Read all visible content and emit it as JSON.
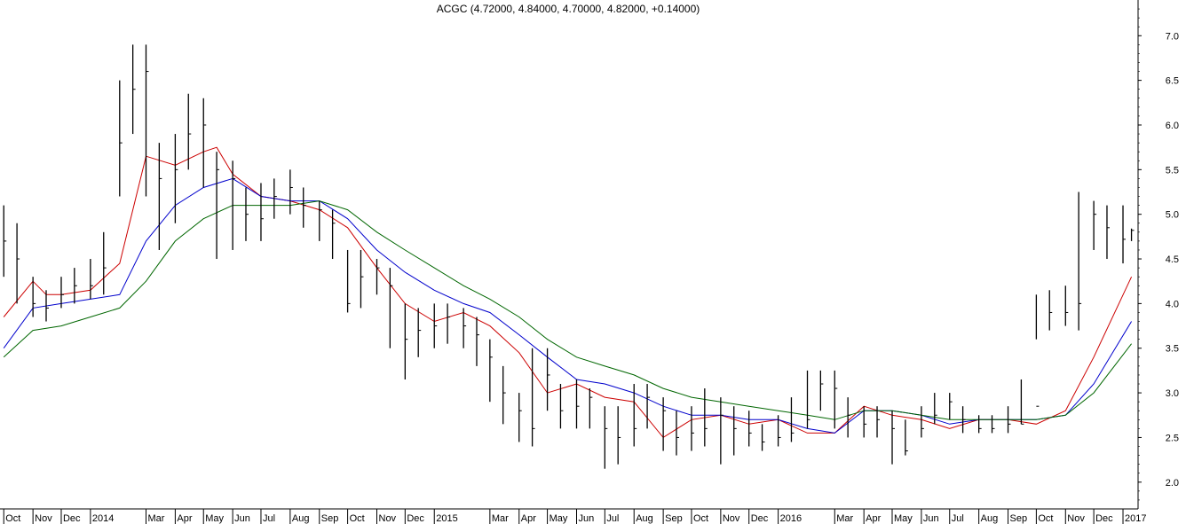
{
  "chart_data": {
    "type": "line",
    "title": "ACGC (4.72000, 4.84000, 4.70000, 4.82000, +0.14000)",
    "xlabel": "",
    "ylabel": "",
    "ylim": [
      1.7,
      7.4
    ],
    "y_ticks": [
      "2.0",
      "2.5",
      "3.0",
      "3.5",
      "4.0",
      "4.5",
      "5.0",
      "5.5",
      "6.0",
      "6.5",
      "7.0"
    ],
    "y_tick_values": [
      2.0,
      2.5,
      3.0,
      3.5,
      4.0,
      4.5,
      5.0,
      5.5,
      6.0,
      6.5,
      7.0
    ],
    "x_tick_labels": [
      "Oct",
      "Nov",
      "Dec",
      "2014",
      "Mar",
      "Apr",
      "May",
      "Jun",
      "Jul",
      "Aug",
      "Sep",
      "Oct",
      "Nov",
      "Dec",
      "2015",
      "Mar",
      "Apr",
      "May",
      "Jun",
      "Jul",
      "Aug",
      "Sep",
      "Oct",
      "Nov",
      "Dec",
      "2016",
      "Mar",
      "Apr",
      "May",
      "Jun",
      "Jul",
      "Aug",
      "Sep",
      "Oct",
      "Nov",
      "Dec",
      "2017"
    ],
    "x_tick_dates": [
      "2013-10",
      "2013-11",
      "2013-12",
      "2014-01",
      "2014-03",
      "2014-04",
      "2014-05",
      "2014-06",
      "2014-07",
      "2014-08",
      "2014-09",
      "2014-10",
      "2014-11",
      "2014-12",
      "2015-01",
      "2015-03",
      "2015-04",
      "2015-05",
      "2015-06",
      "2015-07",
      "2015-08",
      "2015-09",
      "2015-10",
      "2015-11",
      "2015-12",
      "2016-01",
      "2016-03",
      "2016-04",
      "2016-05",
      "2016-06",
      "2016-07",
      "2016-08",
      "2016-09",
      "2016-10",
      "2016-11",
      "2016-12",
      "2017-01"
    ],
    "grid": false,
    "price": {
      "style": "hlc-bars",
      "x": [
        "2013-10-01",
        "2013-10-15",
        "2013-11-01",
        "2013-11-15",
        "2013-12-01",
        "2013-12-15",
        "2014-01-01",
        "2014-01-15",
        "2014-02-01",
        "2014-02-15",
        "2014-03-01",
        "2014-03-15",
        "2014-04-01",
        "2014-04-15",
        "2014-05-01",
        "2014-05-15",
        "2014-06-01",
        "2014-06-15",
        "2014-07-01",
        "2014-07-15",
        "2014-08-01",
        "2014-08-15",
        "2014-09-01",
        "2014-09-15",
        "2014-10-01",
        "2014-10-15",
        "2014-11-01",
        "2014-11-15",
        "2014-12-01",
        "2014-12-15",
        "2015-01-01",
        "2015-01-15",
        "2015-02-01",
        "2015-02-15",
        "2015-03-01",
        "2015-03-15",
        "2015-04-01",
        "2015-04-15",
        "2015-05-01",
        "2015-05-15",
        "2015-06-01",
        "2015-06-15",
        "2015-07-01",
        "2015-07-15",
        "2015-08-01",
        "2015-08-15",
        "2015-09-01",
        "2015-09-15",
        "2015-10-01",
        "2015-10-15",
        "2015-11-01",
        "2015-11-15",
        "2015-12-01",
        "2015-12-15",
        "2016-01-01",
        "2016-01-15",
        "2016-02-01",
        "2016-02-15",
        "2016-03-01",
        "2016-03-15",
        "2016-04-01",
        "2016-04-15",
        "2016-05-01",
        "2016-05-15",
        "2016-06-01",
        "2016-06-15",
        "2016-07-01",
        "2016-07-15",
        "2016-08-01",
        "2016-08-15",
        "2016-09-01",
        "2016-09-15",
        "2016-10-01",
        "2016-10-15",
        "2016-11-01",
        "2016-11-15",
        "2016-12-01",
        "2016-12-15",
        "2017-01-01",
        "2017-01-10"
      ],
      "close": [
        4.7,
        4.5,
        4.0,
        3.95,
        4.1,
        4.2,
        4.2,
        4.4,
        5.8,
        6.4,
        6.6,
        5.4,
        5.5,
        5.9,
        6.0,
        5.5,
        5.4,
        5.0,
        4.95,
        5.2,
        5.3,
        5.1,
        5.05,
        4.9,
        4.0,
        4.3,
        4.4,
        4.2,
        3.6,
        3.7,
        3.75,
        3.85,
        3.75,
        3.65,
        3.4,
        3.0,
        2.8,
        2.6,
        3.2,
        2.8,
        2.85,
        2.95,
        2.6,
        2.5,
        2.6,
        2.95,
        2.8,
        2.5,
        2.55,
        2.6,
        2.75,
        2.6,
        2.55,
        2.45,
        2.5,
        2.55,
        2.7,
        3.1,
        3.05,
        2.75,
        2.65,
        2.7,
        2.6,
        2.35,
        2.6,
        2.75,
        2.9,
        2.7,
        2.6,
        2.6,
        2.65,
        2.65,
        2.85,
        3.9,
        3.9,
        4.0,
        5.0,
        4.85,
        4.72,
        4.82
      ],
      "high": [
        5.1,
        4.9,
        4.3,
        4.15,
        4.3,
        4.4,
        4.5,
        4.8,
        6.5,
        6.9,
        6.9,
        5.8,
        5.9,
        6.35,
        6.3,
        5.7,
        5.6,
        5.3,
        5.35,
        5.4,
        5.5,
        5.3,
        5.15,
        5.05,
        4.6,
        4.6,
        4.5,
        4.4,
        4.0,
        3.95,
        4.0,
        4.0,
        3.95,
        3.85,
        3.6,
        3.3,
        3.0,
        3.5,
        3.5,
        3.1,
        3.15,
        3.05,
        2.85,
        2.85,
        3.1,
        3.1,
        2.95,
        2.8,
        2.85,
        3.05,
        2.95,
        2.85,
        2.8,
        2.65,
        2.75,
        2.95,
        3.25,
        3.25,
        3.25,
        2.95,
        2.85,
        2.85,
        2.8,
        2.7,
        2.85,
        3.0,
        3.0,
        2.85,
        2.75,
        2.75,
        2.85,
        3.15,
        4.1,
        4.15,
        4.2,
        5.25,
        5.15,
        5.1,
        5.1,
        4.84
      ],
      "low": [
        4.3,
        4.0,
        3.85,
        3.8,
        3.95,
        4.0,
        4.05,
        4.1,
        5.2,
        5.9,
        5.2,
        4.6,
        4.9,
        5.5,
        5.3,
        4.5,
        4.6,
        4.7,
        4.7,
        4.95,
        5.0,
        4.85,
        4.7,
        4.5,
        3.9,
        3.95,
        4.1,
        3.5,
        3.15,
        3.4,
        3.5,
        3.55,
        3.5,
        3.3,
        2.9,
        2.65,
        2.45,
        2.4,
        2.8,
        2.6,
        2.6,
        2.6,
        2.15,
        2.2,
        2.4,
        2.6,
        2.35,
        2.3,
        2.35,
        2.4,
        2.2,
        2.3,
        2.4,
        2.35,
        2.4,
        2.45,
        2.6,
        2.8,
        2.6,
        2.5,
        2.5,
        2.5,
        2.2,
        2.3,
        2.5,
        2.65,
        2.7,
        2.55,
        2.55,
        2.55,
        2.55,
        2.65,
        3.6,
        3.7,
        3.75,
        3.7,
        4.6,
        4.5,
        4.45,
        4.7
      ]
    },
    "series": [
      {
        "color": "#cc0000",
        "x": [
          "2013-10-01",
          "2013-11-01",
          "2013-11-15",
          "2013-12-01",
          "2014-01-01",
          "2014-02-01",
          "2014-03-01",
          "2014-04-01",
          "2014-05-01",
          "2014-05-15",
          "2014-06-01",
          "2014-07-01",
          "2014-08-01",
          "2014-09-01",
          "2014-10-01",
          "2014-11-01",
          "2014-12-01",
          "2015-01-01",
          "2015-02-01",
          "2015-03-01",
          "2015-04-01",
          "2015-05-01",
          "2015-06-01",
          "2015-07-01",
          "2015-08-01",
          "2015-09-01",
          "2015-10-01",
          "2015-11-01",
          "2015-12-01",
          "2016-01-01",
          "2016-02-01",
          "2016-03-01",
          "2016-04-01",
          "2016-05-01",
          "2016-06-01",
          "2016-07-01",
          "2016-08-01",
          "2016-09-01",
          "2016-10-01",
          "2016-11-01",
          "2016-12-01",
          "2017-01-10"
        ],
        "values": [
          3.85,
          4.25,
          4.1,
          4.1,
          4.15,
          4.45,
          5.65,
          5.55,
          5.7,
          5.75,
          5.45,
          5.2,
          5.15,
          5.05,
          4.85,
          4.4,
          4.0,
          3.8,
          3.9,
          3.75,
          3.45,
          3.0,
          3.1,
          2.95,
          2.9,
          2.5,
          2.7,
          2.75,
          2.65,
          2.7,
          2.55,
          2.55,
          2.85,
          2.75,
          2.7,
          2.6,
          2.7,
          2.7,
          2.65,
          2.8,
          3.4,
          4.3
        ]
      },
      {
        "color": "#0000cc",
        "x": [
          "2013-10-01",
          "2013-11-01",
          "2013-12-01",
          "2014-01-01",
          "2014-02-01",
          "2014-03-01",
          "2014-04-01",
          "2014-05-01",
          "2014-06-01",
          "2014-07-01",
          "2014-08-01",
          "2014-09-01",
          "2014-10-01",
          "2014-11-01",
          "2014-12-01",
          "2015-01-01",
          "2015-02-01",
          "2015-03-01",
          "2015-04-01",
          "2015-05-01",
          "2015-06-01",
          "2015-07-01",
          "2015-08-01",
          "2015-09-01",
          "2015-10-01",
          "2015-11-01",
          "2015-12-01",
          "2016-01-01",
          "2016-02-01",
          "2016-03-01",
          "2016-04-01",
          "2016-05-01",
          "2016-06-01",
          "2016-07-01",
          "2016-08-01",
          "2016-09-01",
          "2016-10-01",
          "2016-11-01",
          "2016-12-01",
          "2017-01-10"
        ],
        "values": [
          3.5,
          3.95,
          4.0,
          4.05,
          4.1,
          4.7,
          5.1,
          5.3,
          5.4,
          5.2,
          5.15,
          5.15,
          4.95,
          4.6,
          4.35,
          4.15,
          4.0,
          3.9,
          3.65,
          3.4,
          3.15,
          3.1,
          3.0,
          2.85,
          2.75,
          2.75,
          2.7,
          2.7,
          2.6,
          2.55,
          2.8,
          2.8,
          2.75,
          2.65,
          2.7,
          2.7,
          2.7,
          2.75,
          3.1,
          3.8
        ]
      },
      {
        "color": "#006600",
        "x": [
          "2013-10-01",
          "2013-11-01",
          "2013-12-01",
          "2014-01-01",
          "2014-02-01",
          "2014-03-01",
          "2014-04-01",
          "2014-05-01",
          "2014-06-01",
          "2014-07-01",
          "2014-08-01",
          "2014-09-01",
          "2014-10-01",
          "2014-11-01",
          "2014-12-01",
          "2015-01-01",
          "2015-02-01",
          "2015-03-01",
          "2015-04-01",
          "2015-05-01",
          "2015-06-01",
          "2015-07-01",
          "2015-08-01",
          "2015-09-01",
          "2015-10-01",
          "2015-11-01",
          "2015-12-01",
          "2016-01-01",
          "2016-02-01",
          "2016-03-01",
          "2016-04-01",
          "2016-05-01",
          "2016-06-01",
          "2016-07-01",
          "2016-08-01",
          "2016-09-01",
          "2016-10-01",
          "2016-11-01",
          "2016-12-01",
          "2017-01-10"
        ],
        "values": [
          3.4,
          3.7,
          3.75,
          3.85,
          3.95,
          4.25,
          4.7,
          4.95,
          5.1,
          5.1,
          5.1,
          5.15,
          5.05,
          4.8,
          4.6,
          4.4,
          4.2,
          4.05,
          3.85,
          3.6,
          3.4,
          3.3,
          3.2,
          3.05,
          2.95,
          2.9,
          2.85,
          2.8,
          2.75,
          2.7,
          2.8,
          2.8,
          2.75,
          2.7,
          2.7,
          2.7,
          2.7,
          2.75,
          3.0,
          3.55
        ]
      }
    ]
  }
}
